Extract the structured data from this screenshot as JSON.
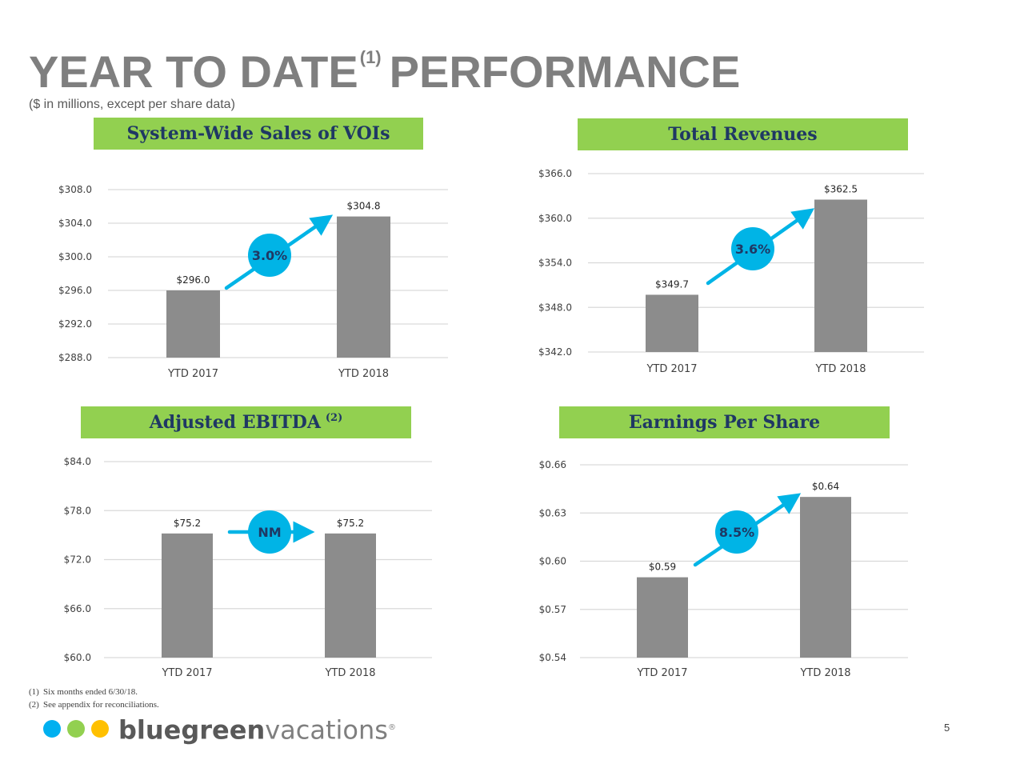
{
  "page": {
    "title_part1": "YEAR TO DATE",
    "title_sup": "(1)",
    "title_part2": "PERFORMANCE",
    "subtitle": "($ in millions, except per share data)",
    "footnotes": [
      {
        "num": "(1)",
        "text": "Six months ended 6/30/18."
      },
      {
        "num": "(2)",
        "text": "See appendix for reconciliations."
      }
    ],
    "page_number": "5",
    "logo": {
      "word_bold": "bluegreen",
      "word_light": "vacations",
      "mark": "®",
      "dot_colors": [
        "#00b0f0",
        "#92d050",
        "#ffc000"
      ]
    },
    "colors": {
      "banner_bg": "#92d050",
      "banner_text": "#1f3864",
      "bar": "#8c8c8c",
      "arrow": "#00b4e6",
      "title": "#7f7f7f"
    }
  },
  "chart_data": [
    {
      "type": "bar",
      "title": "System-Wide Sales of VOIs",
      "title_sup": "",
      "categories": [
        "YTD 2017",
        "YTD 2018"
      ],
      "values": [
        296.0,
        304.8
      ],
      "value_labels": [
        "$296.0",
        "$304.8"
      ],
      "ylim": [
        288.0,
        308.0
      ],
      "yticks": [
        288.0,
        292.0,
        296.0,
        300.0,
        304.0,
        308.0
      ],
      "ytick_labels": [
        "$288.0",
        "$292.0",
        "$296.0",
        "$300.0",
        "$304.0",
        "$308.0"
      ],
      "grid": true,
      "annotation": {
        "label": "3.0%",
        "arrow": "diagonal"
      }
    },
    {
      "type": "bar",
      "title": "Total Revenues",
      "title_sup": "",
      "categories": [
        "YTD 2017",
        "YTD 2018"
      ],
      "values": [
        349.7,
        362.5
      ],
      "value_labels": [
        "$349.7",
        "$362.5"
      ],
      "ylim": [
        342.0,
        366.0
      ],
      "yticks": [
        342.0,
        348.0,
        354.0,
        360.0,
        366.0
      ],
      "ytick_labels": [
        "$342.0",
        "$348.0",
        "$354.0",
        "$360.0",
        "$366.0"
      ],
      "grid": true,
      "annotation": {
        "label": "3.6%",
        "arrow": "diagonal"
      }
    },
    {
      "type": "bar",
      "title": "Adjusted EBITDA",
      "title_sup": "(2)",
      "categories": [
        "YTD 2017",
        "YTD 2018"
      ],
      "values": [
        75.2,
        75.2
      ],
      "value_labels": [
        "$75.2",
        "$75.2"
      ],
      "ylim": [
        60.0,
        84.0
      ],
      "yticks": [
        60.0,
        66.0,
        72.0,
        78.0,
        84.0
      ],
      "ytick_labels": [
        "$60.0",
        "$66.0",
        "$72.0",
        "$78.0",
        "$84.0"
      ],
      "grid": true,
      "annotation": {
        "label": "NM",
        "arrow": "horizontal"
      }
    },
    {
      "type": "bar",
      "title": "Earnings Per Share",
      "title_sup": "",
      "categories": [
        "YTD 2017",
        "YTD 2018"
      ],
      "values": [
        0.59,
        0.64
      ],
      "value_labels": [
        "$0.59",
        "$0.64"
      ],
      "ylim": [
        0.54,
        0.66
      ],
      "yticks": [
        0.54,
        0.57,
        0.6,
        0.63,
        0.66
      ],
      "ytick_labels": [
        "$0.54",
        "$0.57",
        "$0.60",
        "$0.63",
        "$0.66"
      ],
      "grid": true,
      "annotation": {
        "label": "8.5%",
        "arrow": "diagonal"
      }
    }
  ]
}
